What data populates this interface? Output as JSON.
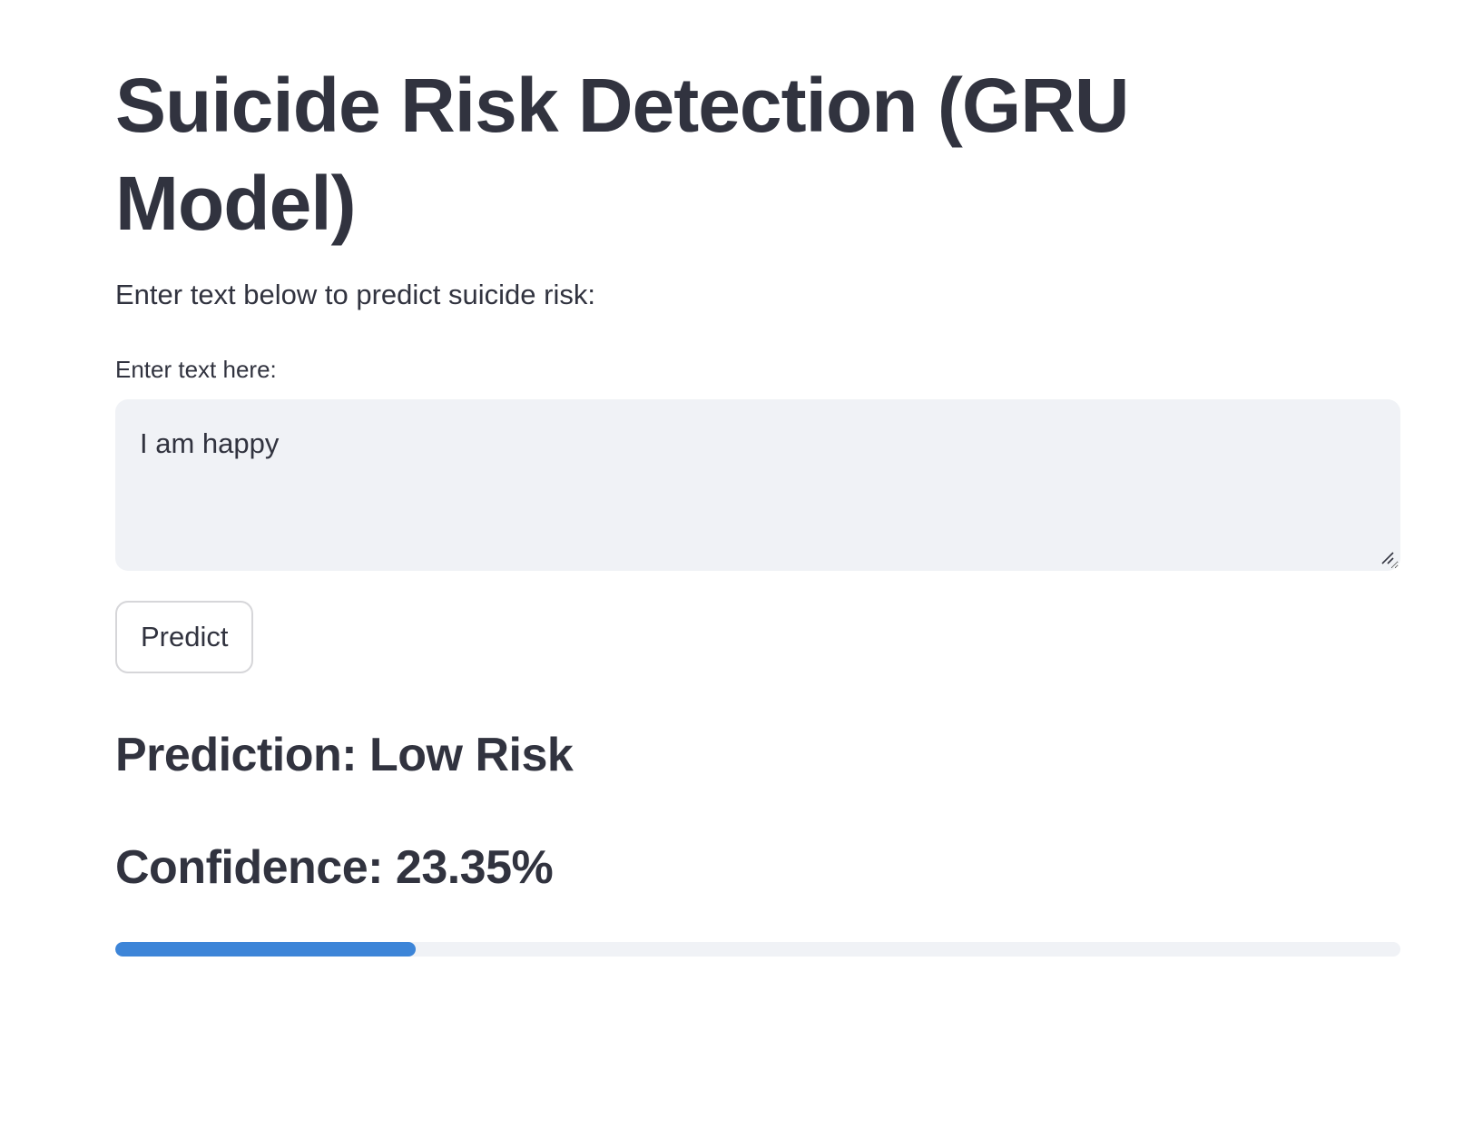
{
  "page": {
    "title": "Suicide Risk Detection (GRU Model)",
    "intro": "Enter text below to predict suicide risk:"
  },
  "input": {
    "label": "Enter text here:",
    "value": "I am happy",
    "resize_icon": "resize-grip-icon"
  },
  "actions": {
    "predict_label": "Predict"
  },
  "result": {
    "prediction_text": "Prediction: Low Risk",
    "confidence_text": "Confidence: 23.35%",
    "confidence_fraction": 0.2335
  },
  "colors": {
    "text": "#31333f",
    "input_background": "#f0f2f6",
    "progress_fill": "#3d85d8",
    "progress_track": "#f0f2f6"
  }
}
